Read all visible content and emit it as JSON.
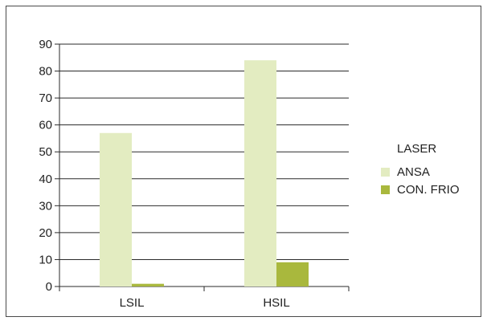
{
  "chart_data": {
    "type": "bar",
    "title": "",
    "xlabel": "",
    "ylabel": "",
    "categories": [
      "LSIL",
      "HSIL"
    ],
    "ylim": [
      0,
      90
    ],
    "yticks": [
      0,
      10,
      20,
      30,
      40,
      50,
      60,
      70,
      80,
      90
    ],
    "grid": true,
    "legend_title": "LASER",
    "legend_position": "right",
    "series": [
      {
        "name": "ANSA",
        "values": [
          57,
          84
        ],
        "color": "#e3ecc1"
      },
      {
        "name": "CON. FRIO",
        "values": [
          1,
          9
        ],
        "color": "#a9b83d"
      }
    ]
  }
}
